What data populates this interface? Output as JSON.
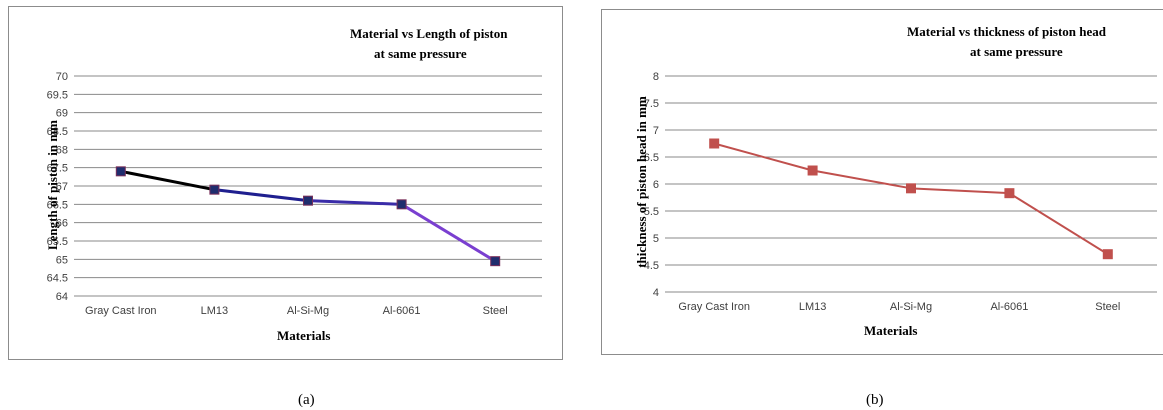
{
  "chart_data": [
    {
      "type": "line",
      "title_line1": "Material vs Length of piston",
      "title_line2": "at same pressure",
      "xlabel": "Materials",
      "ylabel": "Length of piston in mm",
      "categories": [
        "Gray Cast Iron",
        "LM13",
        "Al-Si-Mg",
        "Al-6061",
        "Steel"
      ],
      "series": [
        {
          "values": [
            67.4,
            66.9,
            66.6,
            66.5,
            64.95
          ]
        }
      ],
      "ylim": [
        64,
        70
      ],
      "ystep": 0.5,
      "yticks": [
        "64",
        "64.5",
        "65",
        "65.5",
        "66",
        "66.5",
        "67",
        "67.5",
        "68",
        "68.5",
        "69",
        "69.5",
        "70"
      ],
      "grid": true,
      "line_colors": [
        "#000000",
        "#1f1f8f",
        "#3a2ca8",
        "#3a2ca8"
      ],
      "last_segment_color": "#7a3fd0",
      "marker_color": "#1f2d6e",
      "caption": "(a)"
    },
    {
      "type": "line",
      "title_line1": "Material vs thickness of piston head",
      "title_line2": "at same pressure",
      "xlabel": "Materials",
      "ylabel": "thickness of piston head in mm",
      "categories": [
        "Gray Cast Iron",
        "LM13",
        "Al-Si-Mg",
        "Al-6061",
        "Steel"
      ],
      "series": [
        {
          "values": [
            6.75,
            6.25,
            5.92,
            5.83,
            4.7
          ]
        }
      ],
      "ylim": [
        4,
        8
      ],
      "ystep": 0.5,
      "yticks": [
        "4",
        "4.5",
        "5",
        "5.5",
        "6",
        "6.5",
        "7",
        "7.5",
        "8"
      ],
      "grid": true,
      "line_color": "#c0504d",
      "marker_color": "#c0504d",
      "caption": "(b)"
    }
  ]
}
